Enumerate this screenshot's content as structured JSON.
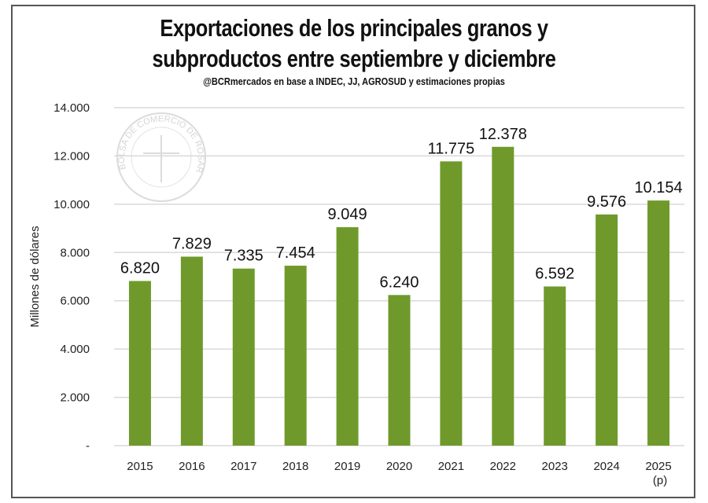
{
  "chart_data": {
    "type": "bar",
    "title": "Exportaciones de los principales granos y subproductos entre septiembre y diciembre",
    "title_lines": [
      "Exportaciones de los principales granos y",
      "subproductos entre septiembre y diciembre"
    ],
    "subtitle": "@BCRmercados en base a INDEC, JJ, AGROSUD y estimaciones propias",
    "xlabel": "",
    "ylabel": "Millones de dólares",
    "ylim": [
      0,
      14000
    ],
    "yticks": [
      0,
      2000,
      4000,
      6000,
      8000,
      10000,
      12000,
      14000
    ],
    "ytick_labels": [
      "-",
      "2.000",
      "4.000",
      "6.000",
      "8.000",
      "10.000",
      "12.000",
      "14.000"
    ],
    "categories": [
      "2015",
      "2016",
      "2017",
      "2018",
      "2019",
      "2020",
      "2021",
      "2022",
      "2023",
      "2024",
      "2025"
    ],
    "category_notes": {
      "2025": "(p)"
    },
    "values": [
      6820,
      7829,
      7335,
      7454,
      9049,
      6240,
      11775,
      12378,
      6592,
      9576,
      10154
    ],
    "data_labels": [
      "6.820",
      "7.829",
      "7.335",
      "7.454",
      "9.049",
      "6.240",
      "11.775",
      "12.378",
      "6.592",
      "9.576",
      "10.154"
    ],
    "grid": true,
    "bar_color": "#6f9a2b",
    "grid_color": "#d9d9d9",
    "watermark": "BOLSA DE COMERCIO DE ROSARIO"
  }
}
